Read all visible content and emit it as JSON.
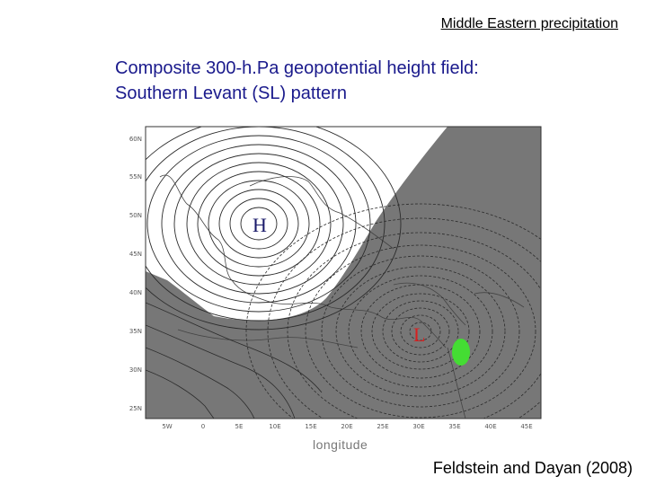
{
  "header": {
    "title": "Middle Eastern precipitation"
  },
  "slide": {
    "title_line1": "Composite 300-h.Pa geopotential height field:",
    "title_line2": "Southern Levant (SL) pattern"
  },
  "map": {
    "latitude_labels": [
      "60N",
      "55N",
      "50N",
      "45N",
      "40N",
      "35N",
      "30N",
      "25N"
    ],
    "longitude_labels": [
      "5W",
      "0",
      "5E",
      "10E",
      "15E",
      "20E",
      "25E",
      "30E",
      "35E",
      "40E",
      "45E"
    ],
    "x_axis_label": "longitude",
    "high_label": "H",
    "low_label": "L",
    "colors": {
      "shading": "#777777",
      "contour": "#2b2b2b",
      "low_label": "#d82020",
      "marker": "#44dd33"
    }
  },
  "citation": "Feldstein and Dayan (2008)"
}
